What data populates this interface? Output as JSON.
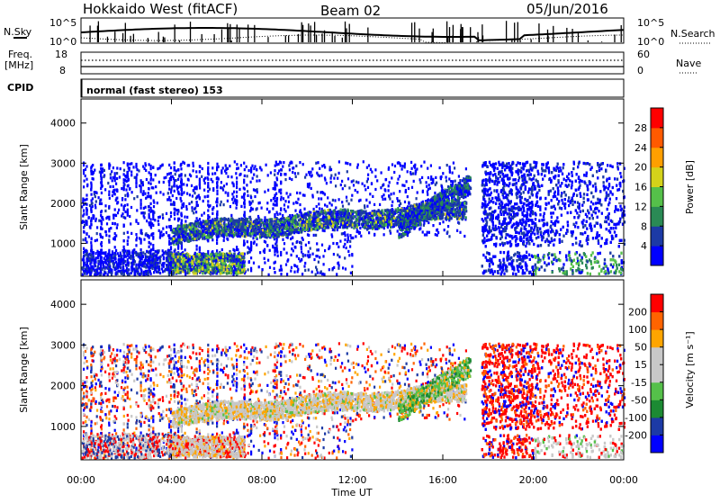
{
  "header": {
    "title": "Hokkaido West (fitACF)",
    "beam": "Beam 02",
    "date": "05/Jun/2016"
  },
  "nsky_label": "N.Sky",
  "nsky_ticks": [
    "10^5",
    "10^0"
  ],
  "nsearch_label": "N.Search",
  "freq_label_1": "Freq.",
  "freq_label_2": "[MHz]",
  "freq_ticks": [
    "18",
    "8"
  ],
  "nave_label": "Nave",
  "nave_ticks": [
    "60",
    "0"
  ],
  "cpid_label": "CPID",
  "mode_text": "normal (fast stereo) 153",
  "colors": {
    "power": [
      "#0000ff",
      "#1c3aa6",
      "#2a8a55",
      "#55c04a",
      "#d4d21a",
      "#ff9f00",
      "#ff5a00",
      "#ff0000"
    ],
    "velocity": [
      "#ff0000",
      "#ff6400",
      "#ffa500",
      "#c8c8c8",
      "#c8c8c8",
      "#55c04a",
      "#1c8a33",
      "#1c3aa6",
      "#0000ff"
    ]
  },
  "chart_data": [
    {
      "type": "heatmap",
      "parameter": "power",
      "ylabel": "Slant Range [km]",
      "x_ticks": [
        "00:00",
        "04:00",
        "08:00",
        "12:00",
        "16:00",
        "20:00",
        "00:00"
      ],
      "xlim_hours": [
        0,
        24
      ],
      "y_ticks": [
        1000,
        2000,
        3000,
        4000
      ],
      "ylim": [
        180,
        4600
      ],
      "colorbar": {
        "label": "Power [dB]",
        "range": [
          0,
          32
        ],
        "ticks": [
          4,
          8,
          12,
          16,
          20,
          24,
          28
        ]
      }
    },
    {
      "type": "heatmap",
      "parameter": "velocity",
      "xlabel": "Time UT",
      "ylabel": "Slant Range [km]",
      "x_ticks": [
        "00:00",
        "04:00",
        "08:00",
        "12:00",
        "16:00",
        "20:00",
        "00:00"
      ],
      "xlim_hours": [
        0,
        24
      ],
      "y_ticks": [
        1000,
        2000,
        3000,
        4000
      ],
      "ylim": [
        180,
        4600
      ],
      "colorbar": {
        "label": "Velocity [m s⁻¹]",
        "ticks": [
          "200",
          "100",
          "50",
          "15",
          "-15",
          "-50",
          "-100",
          "-200"
        ]
      }
    }
  ]
}
